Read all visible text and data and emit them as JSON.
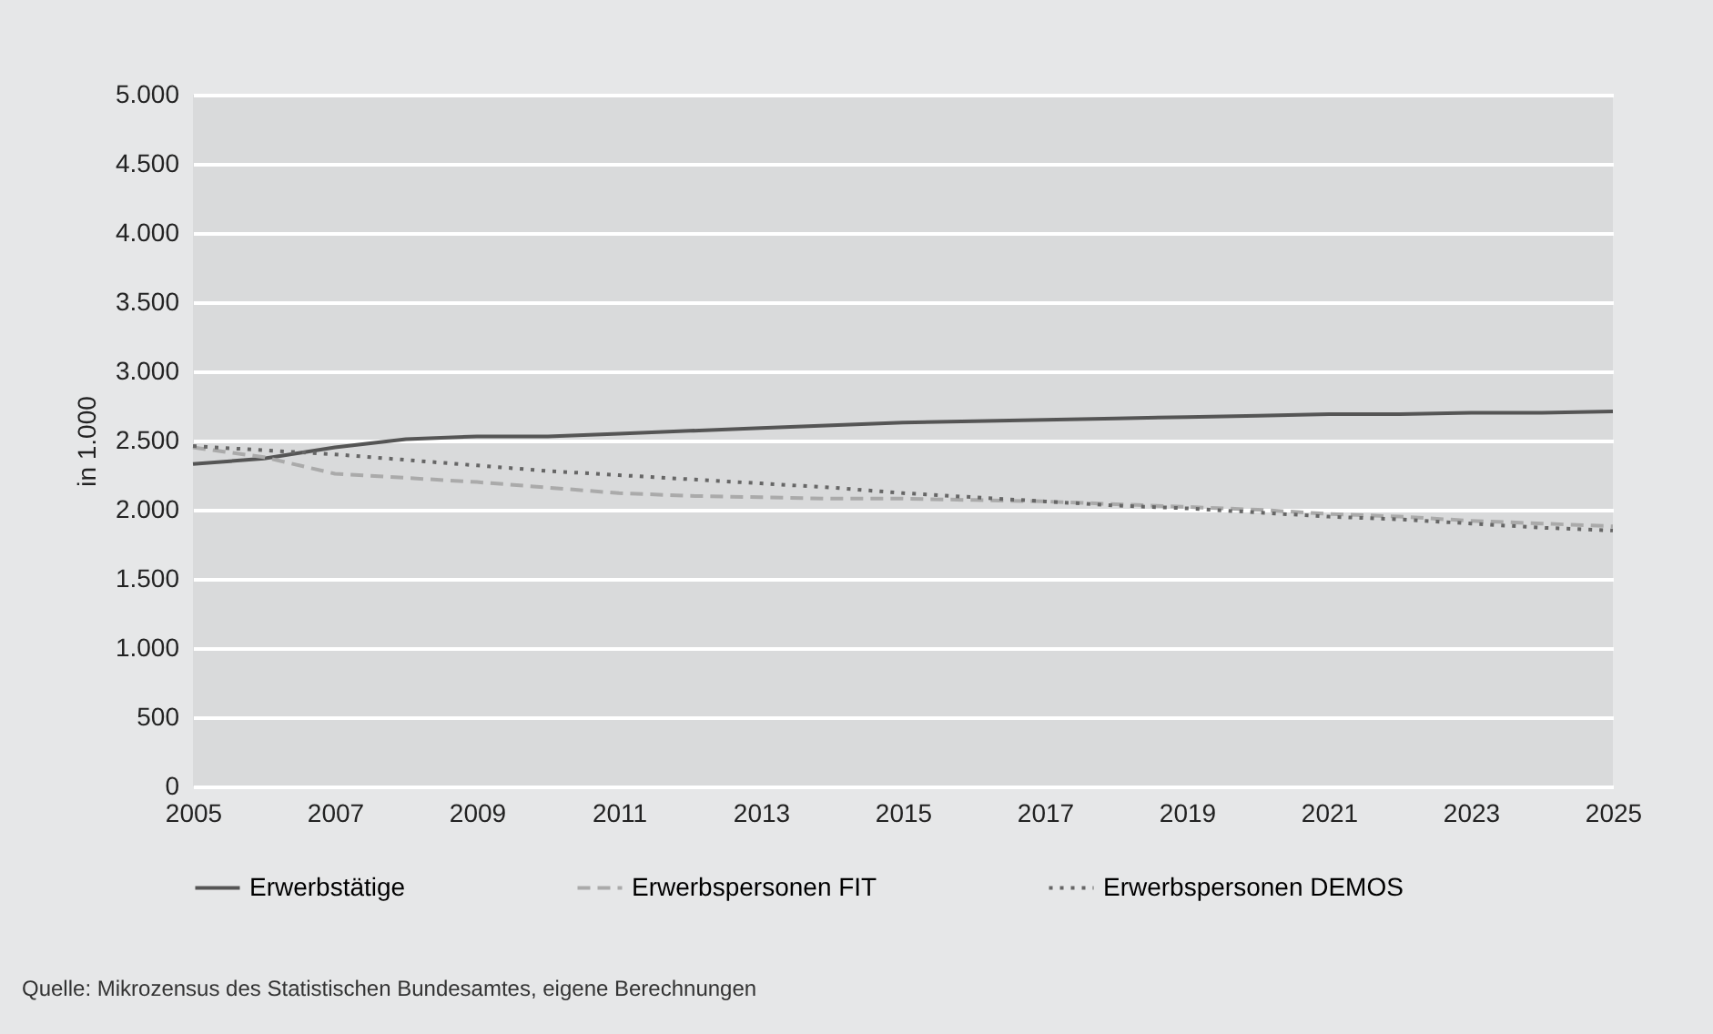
{
  "chart_data": {
    "type": "line",
    "ylabel": "in 1.000",
    "x": [
      2005,
      2006,
      2007,
      2008,
      2009,
      2010,
      2011,
      2012,
      2013,
      2014,
      2015,
      2016,
      2017,
      2018,
      2019,
      2020,
      2021,
      2022,
      2023,
      2024,
      2025
    ],
    "series": [
      {
        "name": "Erwerbstätige",
        "color": "#555555",
        "line_style": "solid",
        "values": [
          2330,
          2370,
          2450,
          2510,
          2530,
          2530,
          2550,
          2570,
          2590,
          2610,
          2630,
          2640,
          2650,
          2660,
          2670,
          2680,
          2690,
          2690,
          2700,
          2700,
          2710
        ]
      },
      {
        "name": "Erwerbspersonen FIT",
        "color": "#aaaaaa",
        "line_style": "dashed",
        "values": [
          2450,
          2380,
          2260,
          2230,
          2200,
          2160,
          2120,
          2100,
          2090,
          2080,
          2080,
          2070,
          2060,
          2040,
          2020,
          2000,
          1970,
          1950,
          1920,
          1900,
          1880
        ]
      },
      {
        "name": "Erwerbspersonen DEMOS",
        "color": "#666666",
        "line_style": "dotted",
        "values": [
          2460,
          2430,
          2400,
          2360,
          2320,
          2280,
          2250,
          2220,
          2190,
          2160,
          2120,
          2090,
          2060,
          2030,
          2010,
          1980,
          1950,
          1930,
          1900,
          1870,
          1850
        ]
      }
    ],
    "xlim": [
      2005,
      2025
    ],
    "xticks": [
      2005,
      2007,
      2009,
      2011,
      2013,
      2015,
      2017,
      2019,
      2021,
      2023,
      2025
    ],
    "ylim": [
      0,
      5000
    ],
    "yticks": [
      {
        "value": 0,
        "label": "0"
      },
      {
        "value": 500,
        "label": "500"
      },
      {
        "value": 1000,
        "label": "1.000"
      },
      {
        "value": 1500,
        "label": "1.500"
      },
      {
        "value": 2000,
        "label": "2.000"
      },
      {
        "value": 2500,
        "label": "2.500"
      },
      {
        "value": 3000,
        "label": "3.000"
      },
      {
        "value": 3500,
        "label": "3.500"
      },
      {
        "value": 4000,
        "label": "4.000"
      },
      {
        "value": 4500,
        "label": "4.500"
      },
      {
        "value": 5000,
        "label": "5.000"
      }
    ],
    "grid": "y",
    "legend": "bottom",
    "annotations": [
      "Quelle: Mikrozensus des Statistischen Bundesamtes, eigene Berechnungen"
    ]
  }
}
